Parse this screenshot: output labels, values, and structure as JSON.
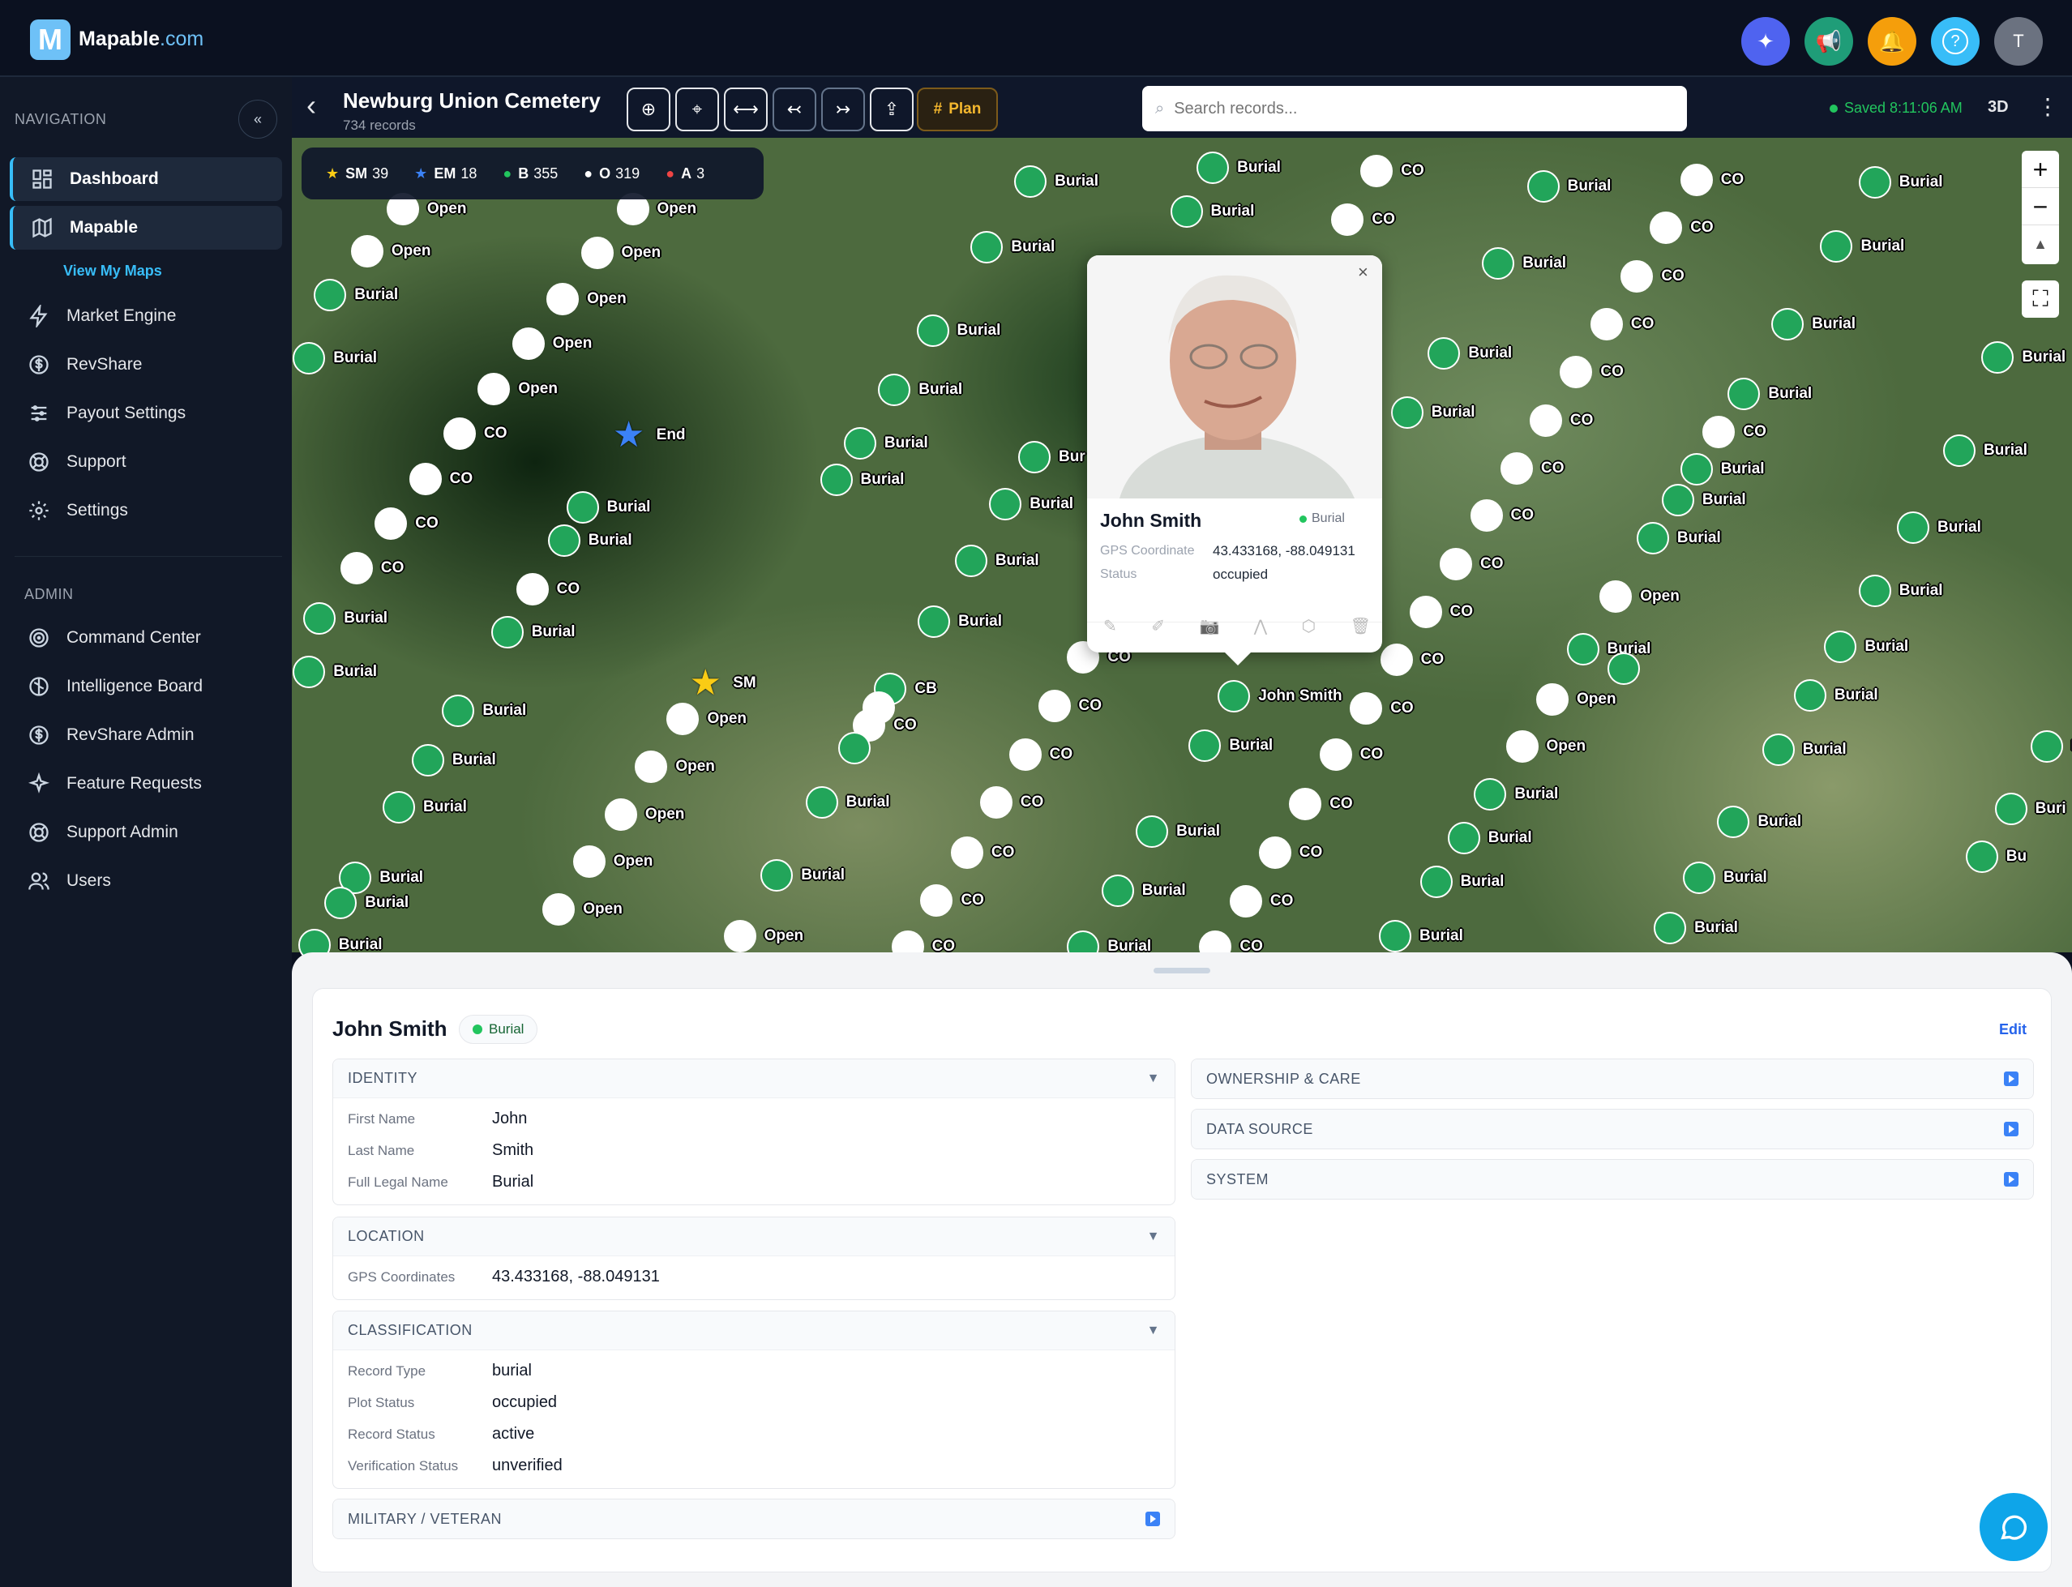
{
  "app": {
    "logo_letter": "M",
    "brand_name": "Mapable",
    "brand_domain": ".com"
  },
  "topbar": {
    "buttons": [
      {
        "icon": "sparkles-icon",
        "color": "#4f63f0"
      },
      {
        "icon": "megaphone-icon",
        "color": "#1f9d78"
      },
      {
        "icon": "bell-icon",
        "color": "#f59e0b"
      },
      {
        "icon": "help-icon",
        "color": "#38bdf8"
      }
    ],
    "avatar_initial": "T",
    "avatar_color": "#6b7280"
  },
  "sidebar": {
    "nav_heading": "NAVIGATION",
    "collapse_label": "«",
    "items": [
      {
        "label": "Dashboard",
        "icon": "dashboard-icon"
      },
      {
        "label": "Mapable",
        "icon": "map-icon"
      }
    ],
    "sub_item": "View My Maps",
    "items2": [
      {
        "label": "Market Engine",
        "icon": "lightning-icon"
      },
      {
        "label": "RevShare",
        "icon": "dollar-icon"
      },
      {
        "label": "Payout Settings",
        "icon": "sliders-icon"
      },
      {
        "label": "Support",
        "icon": "lifebuoy-icon"
      },
      {
        "label": "Settings",
        "icon": "gear-icon"
      }
    ],
    "admin_heading": "ADMIN",
    "admin_items": [
      {
        "label": "Command Center",
        "icon": "target-icon"
      },
      {
        "label": "Intelligence Board",
        "icon": "brain-icon"
      },
      {
        "label": "RevShare Admin",
        "icon": "dollar-icon"
      },
      {
        "label": "Feature Requests",
        "icon": "sparkles-icon"
      },
      {
        "label": "Support Admin",
        "icon": "lifebuoy-icon"
      },
      {
        "label": "Users",
        "icon": "users-icon"
      }
    ]
  },
  "header": {
    "title": "Newburg Union Cemetery",
    "subtitle": "734 records",
    "tools": [
      "add-point-icon",
      "locate-icon",
      "measure-icon",
      "undo-icon",
      "redo-icon",
      "export-icon"
    ],
    "plan_label": "Plan",
    "search_placeholder": "Search records...",
    "saved_text": "Saved 8:11:06 AM",
    "view_3d": "3D"
  },
  "legend": [
    {
      "symbol": "★",
      "color": "#facc15",
      "code": "SM",
      "count": "39"
    },
    {
      "symbol": "★",
      "color": "#3b82f6",
      "code": "EM",
      "count": "18"
    },
    {
      "symbol": "●",
      "color": "#22c55e",
      "code": "B",
      "count": "355"
    },
    {
      "symbol": "●",
      "color": "#ffffff",
      "code": "O",
      "count": "319"
    },
    {
      "symbol": "●",
      "color": "#ef4444",
      "code": "A",
      "count": "3"
    }
  ],
  "map": {
    "zoom_in": "+",
    "zoom_out": "−",
    "compass": "▲",
    "colors": {
      "burial": "#22a55a",
      "open": "#ffffff"
    },
    "markers": [
      [
        "w",
        "Open"
      ],
      [
        "w",
        "Open"
      ],
      [
        "g",
        "Burial"
      ],
      [
        "g",
        "Burial"
      ],
      [
        "w",
        "Open"
      ],
      [
        "w",
        "Open"
      ],
      [
        "w",
        "Open"
      ],
      [
        "w",
        "Open"
      ],
      [
        "w",
        "Open"
      ],
      [
        "w",
        "CO"
      ],
      [
        "w",
        "CO"
      ],
      [
        "w",
        "CO"
      ],
      [
        "w",
        "CO"
      ],
      [
        "g",
        "Burial"
      ],
      [
        "g",
        "Burial"
      ],
      [
        "g",
        "Burial"
      ],
      [
        "g",
        "Burial"
      ],
      [
        "w",
        "CO"
      ],
      [
        "g",
        "Burial"
      ],
      [
        "g",
        "Burial"
      ],
      [
        "g",
        "Burial"
      ],
      [
        "g",
        "Burial"
      ],
      [
        "g",
        "Burial"
      ],
      [
        "g",
        "Burial"
      ],
      [
        "g",
        "Burial"
      ],
      [
        "w",
        "Open"
      ],
      [
        "w",
        "Open"
      ],
      [
        "w",
        "Open"
      ],
      [
        "w",
        "Open"
      ],
      [
        "w",
        "Open"
      ],
      [
        "w",
        "Open"
      ],
      [
        "g",
        "CB"
      ],
      [
        "w",
        ""
      ],
      [
        "w",
        "CO"
      ],
      [
        "g",
        ""
      ],
      [
        "g",
        "Burial"
      ],
      [
        "g",
        "Burial"
      ],
      [
        "g",
        "Burial"
      ],
      [
        "g",
        "Burial"
      ],
      [
        "g",
        "Burial"
      ],
      [
        "g",
        "Burial"
      ],
      [
        "g",
        "Burial"
      ],
      [
        "g",
        "Burial"
      ],
      [
        "g",
        "Bur"
      ],
      [
        "g",
        "Burial"
      ],
      [
        "g",
        "Burial"
      ],
      [
        "g",
        "Burial"
      ],
      [
        "w",
        "CO"
      ],
      [
        "w",
        "CO"
      ],
      [
        "w",
        "CO"
      ],
      [
        "w",
        "CO"
      ],
      [
        "w",
        "CO"
      ],
      [
        "w",
        "CO"
      ],
      [
        "w",
        "CO"
      ],
      [
        "g",
        "Burial"
      ],
      [
        "g",
        "Burial"
      ],
      [
        "g",
        "Burial"
      ],
      [
        "g",
        "John Smith"
      ],
      [
        "g",
        "Burial"
      ],
      [
        "w",
        "CO"
      ],
      [
        "w",
        "CO"
      ],
      [
        "w",
        "CO"
      ],
      [
        "w",
        "CO"
      ],
      [
        "w",
        "CO"
      ],
      [
        "w",
        "CO"
      ],
      [
        "w",
        "CO"
      ],
      [
        "w",
        "CO"
      ],
      [
        "w",
        "CO"
      ],
      [
        "w",
        "CO"
      ],
      [
        "w",
        "CO"
      ],
      [
        "w",
        "CO"
      ],
      [
        "w",
        "CO"
      ],
      [
        "w",
        "CO"
      ],
      [
        "w",
        "CO"
      ],
      [
        "w",
        "CO"
      ],
      [
        "w",
        "CO"
      ],
      [
        "g",
        "Burial"
      ],
      [
        "g",
        "Burial"
      ],
      [
        "w",
        "CO"
      ],
      [
        "w",
        "CO"
      ],
      [
        "g",
        "Burial"
      ],
      [
        "g",
        "Burial"
      ],
      [
        "g",
        "Burial"
      ],
      [
        "g",
        "Burial"
      ],
      [
        "g",
        "Burial"
      ],
      [
        "g",
        "Burial"
      ],
      [
        "g",
        "Burial"
      ],
      [
        "g",
        "Burial"
      ],
      [
        "w",
        "CO"
      ],
      [
        "g",
        "Burial"
      ],
      [
        "g",
        "Burial"
      ],
      [
        "g",
        "Burial"
      ],
      [
        "w",
        "Open"
      ],
      [
        "g",
        "Burial"
      ],
      [
        "g",
        ""
      ],
      [
        "w",
        "Open"
      ],
      [
        "w",
        "Open"
      ],
      [
        "g",
        "Burial"
      ],
      [
        "g",
        "Burial"
      ],
      [
        "g",
        "Burial"
      ],
      [
        "g",
        "Burial"
      ],
      [
        "g",
        "Burial"
      ],
      [
        "g",
        "Burial"
      ],
      [
        "g",
        "Burial"
      ],
      [
        "g",
        "Burial"
      ],
      [
        "g",
        "Burial"
      ],
      [
        "g",
        "Burial"
      ],
      [
        "g",
        "Burial"
      ],
      [
        "g",
        "Burial"
      ],
      [
        "g",
        "Burial"
      ],
      [
        "g",
        "Burial"
      ],
      [
        "g",
        "Buri"
      ],
      [
        "g",
        "Bu"
      ],
      [
        "g",
        "Burial"
      ],
      [
        "g",
        ""
      ]
    ],
    "stars": [
      {
        "color": "#3b82f6",
        "label": "End"
      },
      {
        "color": "#facc15",
        "label": "SM"
      }
    ]
  },
  "popup": {
    "name": "John Smith",
    "type": "Burial",
    "type_color": "#22c55e",
    "gps_label": "GPS Coordinate",
    "gps_value": "43.433168, -88.049131",
    "status_label": "Status",
    "status_value": "occupied",
    "close": "×",
    "actions": [
      "pin-icon",
      "pencil-icon",
      "camera-icon",
      "navigate-icon",
      "cube-icon",
      "trash-icon"
    ]
  },
  "detail": {
    "name": "John Smith",
    "badge": "Burial",
    "edit": "Edit",
    "identity": {
      "title": "IDENTITY",
      "rows": [
        [
          "First Name",
          "John"
        ],
        [
          "Last Name",
          "Smith"
        ],
        [
          "Full Legal Name",
          "Burial"
        ]
      ]
    },
    "location": {
      "title": "LOCATION",
      "rows": [
        [
          "GPS Coordinates",
          "43.433168, -88.049131"
        ]
      ]
    },
    "classification": {
      "title": "CLASSIFICATION",
      "rows": [
        [
          "Record Type",
          "burial"
        ],
        [
          "Plot Status",
          "occupied"
        ],
        [
          "Record Status",
          "active"
        ],
        [
          "Verification Status",
          "unverified"
        ]
      ]
    },
    "military": {
      "title": "MILITARY / VETERAN"
    },
    "ownership": {
      "title": "OWNERSHIP & CARE"
    },
    "data_source": {
      "title": "DATA SOURCE"
    },
    "system": {
      "title": "SYSTEM"
    }
  }
}
